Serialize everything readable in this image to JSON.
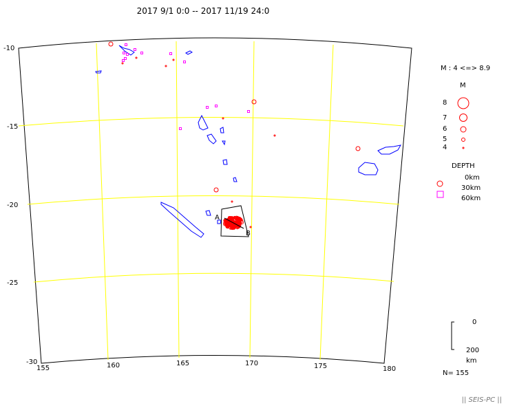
{
  "title": "2017 9/1 0:0 -- 2017 11/19 24:0",
  "map": {
    "lon_labels": [
      "155",
      "160",
      "165",
      "170",
      "175",
      "180"
    ],
    "lat_labels": [
      "-10",
      "-15",
      "-20",
      "-25",
      "-30"
    ],
    "lon_range": [
      155,
      180
    ],
    "lat_range": [
      -30,
      -10
    ],
    "projection": "conic",
    "grid_color": "#ffff00",
    "coast_color": "#0000ff",
    "quake_color_shallow": "#ff0000",
    "quake_color_deep": "#ff00ff",
    "section": {
      "start_label": "A",
      "end_label": "B"
    }
  },
  "legend": {
    "magnitude_range": "M : 4 <=> 8.9",
    "magnitude_title": "M",
    "magnitudes": [
      "8",
      "7",
      "6",
      "5",
      "4"
    ],
    "depth_title": "DEPTH",
    "depths": [
      "0km",
      "30km",
      "60km"
    ],
    "depth_scale": {
      "top": "0",
      "bottom": "200",
      "unit": "km"
    },
    "count": "N= 155"
  },
  "footer": "|| SEIS-PC ||"
}
